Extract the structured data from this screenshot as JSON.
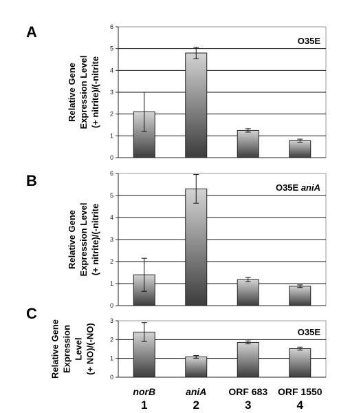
{
  "chart_data": [
    {
      "type": "bar",
      "panel": "A",
      "strain_label": "O35E",
      "strain_italic": "",
      "ylabel": [
        "Relative Gene",
        "Expression Level",
        "(+ nitrite)/(-nitrite"
      ],
      "ylim": [
        0,
        6
      ],
      "yticks": [
        0,
        1,
        2,
        3,
        4,
        5,
        6
      ],
      "categories": [
        "norB",
        "aniA",
        "ORF 683",
        "ORF 1550"
      ],
      "values": [
        2.1,
        4.8,
        1.25,
        0.78
      ],
      "errors": [
        0.9,
        0.27,
        0.08,
        0.07
      ],
      "grid": true
    },
    {
      "type": "bar",
      "panel": "B",
      "strain_label": "O35E ",
      "strain_italic": "aniA",
      "ylabel": [
        "Relative Gene",
        "Expression Level",
        "(+ nitrite)/(-nitrite"
      ],
      "ylim": [
        0,
        6
      ],
      "yticks": [
        0,
        1,
        2,
        3,
        4,
        5,
        6
      ],
      "categories": [
        "norB",
        "aniA",
        "ORF 683",
        "ORF 1550"
      ],
      "values": [
        1.4,
        5.3,
        1.18,
        0.88
      ],
      "errors": [
        0.75,
        0.65,
        0.1,
        0.06
      ],
      "grid": true
    },
    {
      "type": "bar",
      "panel": "C",
      "strain_label": "O35E",
      "strain_italic": "",
      "ylabel": [
        "Relative Gene",
        "Expression",
        "Level",
        "(+ NO)/(-NO)"
      ],
      "ylim": [
        0,
        3
      ],
      "yticks": [
        0,
        1,
        2,
        3
      ],
      "categories": [
        "norB",
        "aniA",
        "ORF 683",
        "ORF 1550"
      ],
      "values": [
        2.4,
        1.08,
        1.85,
        1.52
      ],
      "errors": [
        0.5,
        0.07,
        0.08,
        0.08
      ],
      "grid": true
    }
  ],
  "x_axis": {
    "labels": [
      "norB",
      "aniA",
      "ORF 683",
      "ORF 1550"
    ],
    "italic": [
      true,
      true,
      false,
      false
    ],
    "numbers": [
      "1",
      "2",
      "3",
      "4"
    ]
  }
}
